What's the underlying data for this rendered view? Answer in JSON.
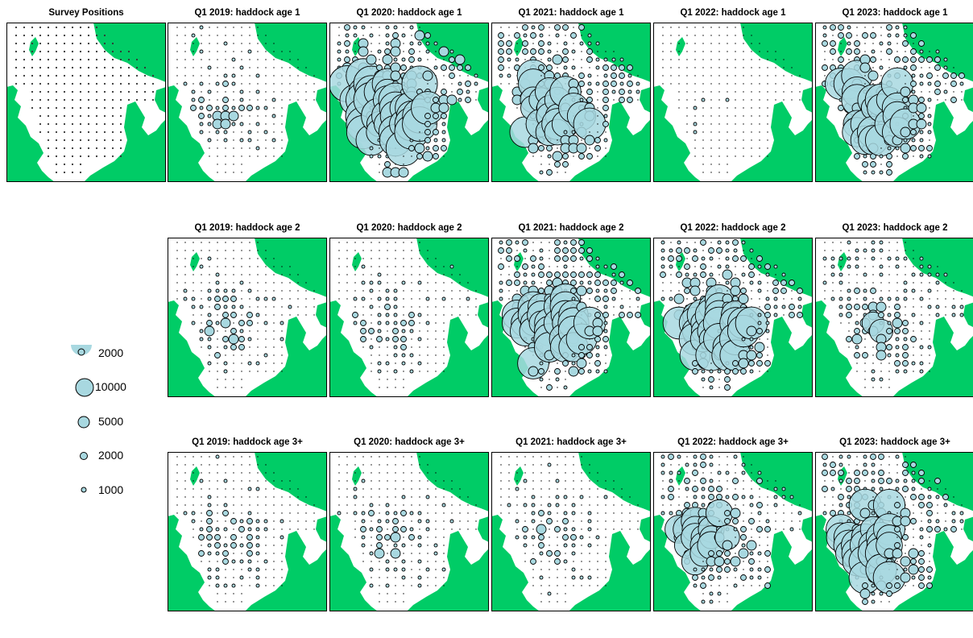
{
  "colors": {
    "land": "#00cc66",
    "sea": "#ffffff",
    "bubble_fill": "#a8d8e0",
    "bubble_stroke": "#000000",
    "survey_point": "#c8a0d0"
  },
  "panels": [
    {
      "id": "survey",
      "title": "Survey Positions",
      "kind": "survey"
    },
    {
      "id": "r1c1",
      "title": "Q1 2019: haddock age 1",
      "year": 2019,
      "age": "1",
      "density": 1
    },
    {
      "id": "r1c2",
      "title": "Q1 2020: haddock age 1",
      "year": 2020,
      "age": "1",
      "density": 5
    },
    {
      "id": "r1c3",
      "title": "Q1 2021: haddock age 1",
      "year": 2021,
      "age": "1",
      "density": 4
    },
    {
      "id": "r1c4",
      "title": "Q1 2022: haddock age 1",
      "year": 2022,
      "age": "1",
      "density": 0
    },
    {
      "id": "r1c5",
      "title": "Q1 2023: haddock age 1",
      "year": 2023,
      "age": "1",
      "density": 4
    },
    {
      "id": "r2c1",
      "title": "Q1 2019: haddock age 2",
      "year": 2019,
      "age": "2",
      "density": 1
    },
    {
      "id": "r2c2",
      "title": "Q1 2020: haddock age 2",
      "year": 2020,
      "age": "2",
      "density": 1
    },
    {
      "id": "r2c3",
      "title": "Q1 2021: haddock age 2",
      "year": 2021,
      "age": "2",
      "density": 4
    },
    {
      "id": "r2c4",
      "title": "Q1 2022: haddock age 2",
      "year": 2022,
      "age": "2",
      "density": 4
    },
    {
      "id": "r2c5",
      "title": "Q1 2023: haddock age 2",
      "year": 2023,
      "age": "2",
      "density": 2
    },
    {
      "id": "r3c1",
      "title": "Q1 2019: haddock age 3+",
      "year": 2019,
      "age": "3+",
      "density": 1
    },
    {
      "id": "r3c2",
      "title": "Q1 2020: haddock age 3+",
      "year": 2020,
      "age": "3+",
      "density": 1
    },
    {
      "id": "r3c3",
      "title": "Q1 2021: haddock age 3+",
      "year": 2021,
      "age": "3+",
      "density": 1
    },
    {
      "id": "r3c4",
      "title": "Q1 2022: haddock age 3+",
      "year": 2022,
      "age": "3+",
      "density": 3
    },
    {
      "id": "r3c5",
      "title": "Q1 2023: haddock age 3+",
      "year": 2023,
      "age": "3+",
      "density": 4
    }
  ],
  "legend": [
    {
      "label": "2000",
      "value": 2000,
      "style": "header"
    },
    {
      "label": "10000",
      "value": 10000
    },
    {
      "label": "5000",
      "value": 5000
    },
    {
      "label": "2000",
      "value": 2000
    },
    {
      "label": "1000",
      "value": 1000
    }
  ]
}
